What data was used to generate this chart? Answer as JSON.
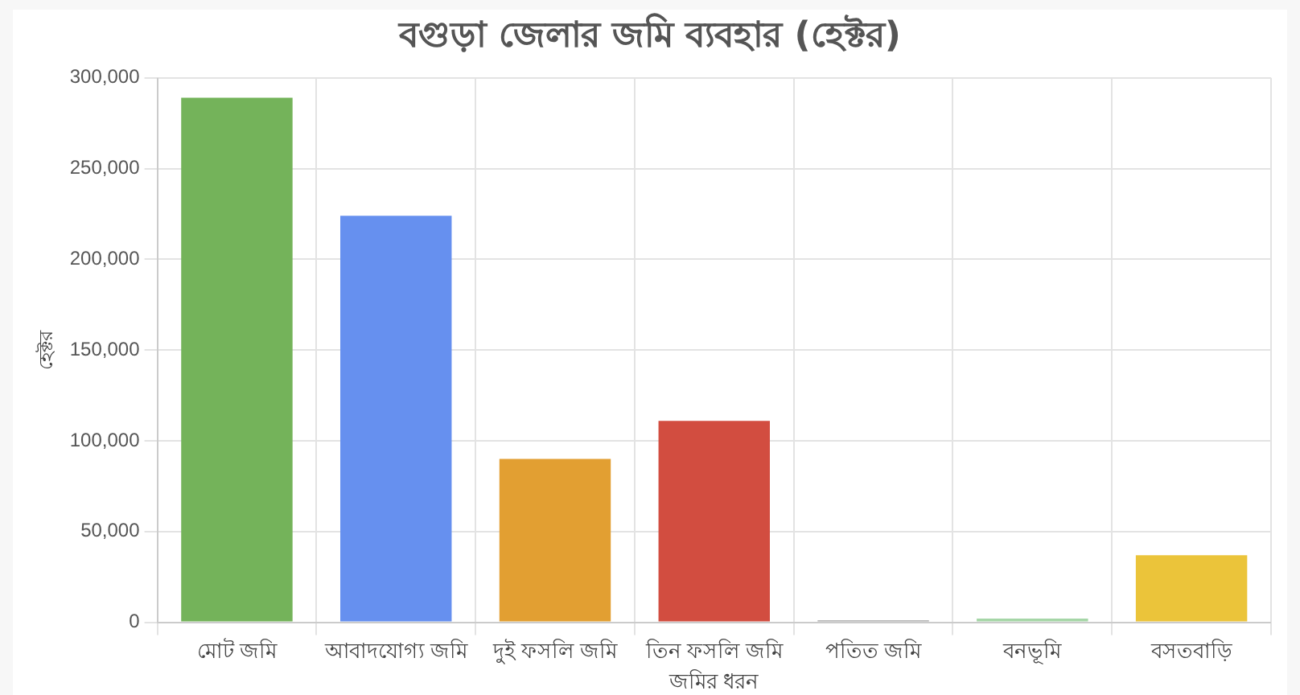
{
  "chart_data": {
    "type": "bar",
    "title": "বগুড়া জেলার জমি ব্যবহার (হেক্টর)",
    "xlabel": "জমির ধরন",
    "ylabel": "হেক্টর",
    "categories": [
      "মোট জমি",
      "আবাদযোগ্য জমি",
      "দুই ফসলি জমি",
      "তিন ফসলি জমি",
      "পতিত জমি",
      "বনভূমি",
      "বসতবাড়ি"
    ],
    "values": [
      289000,
      224000,
      90000,
      111000,
      1000,
      2000,
      37000
    ],
    "colors": [
      "#74b35a",
      "#6690ef",
      "#e29f32",
      "#d24d40",
      "#9e9e9e",
      "#a5d6a7",
      "#ebc43a"
    ],
    "ylim": [
      0,
      300000
    ],
    "yticks": [
      0,
      {
        "value": 50000,
        "label": "50,000"
      },
      {
        "value": 100000,
        "label": "100,000"
      },
      {
        "value": 150000,
        "label": "150,000"
      },
      {
        "value": 200000,
        "label": "200,000"
      },
      {
        "value": 250000,
        "label": "250,000"
      },
      {
        "value": 300000,
        "label": "300,000"
      }
    ],
    "grid": true
  }
}
